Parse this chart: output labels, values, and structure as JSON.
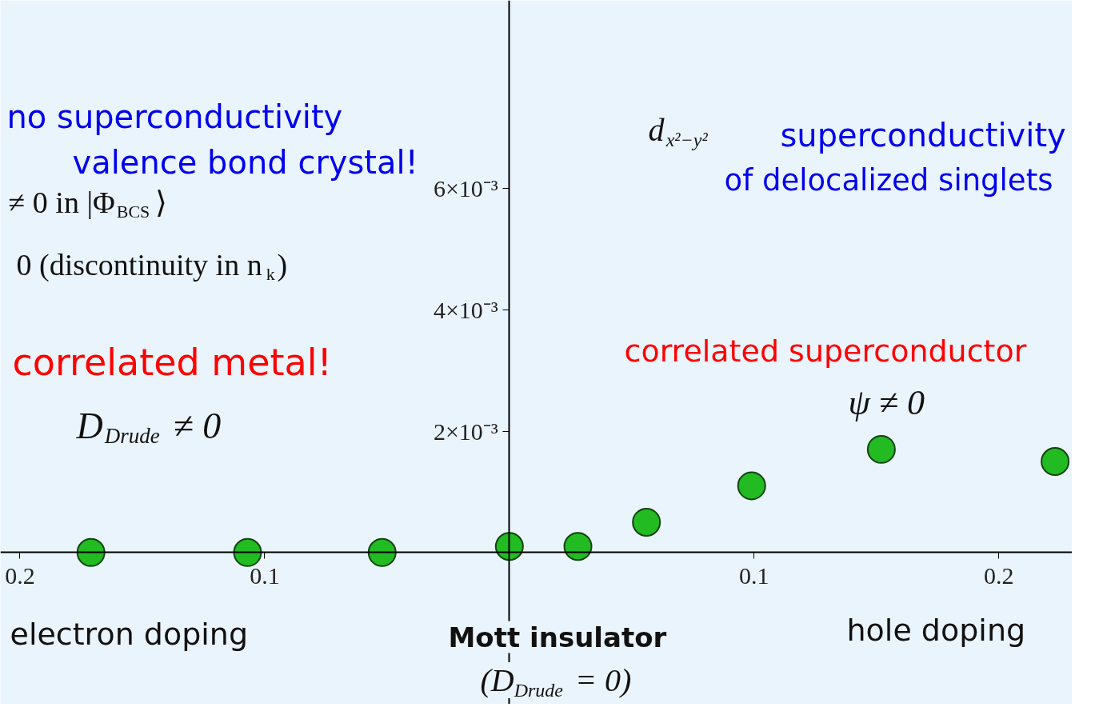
{
  "chart_data": {
    "type": "scatter",
    "marker": "circle",
    "grid": false,
    "x": [
      -0.171,
      -0.107,
      -0.052,
      0.0,
      0.028,
      0.056,
      0.099,
      0.152,
      0.223
    ],
    "series": [
      {
        "color": "#22bb22",
        "values": [
          0.0,
          0.0,
          0.0,
          0.0001,
          0.0001,
          0.0005,
          0.0011,
          0.0017,
          0.0015
        ]
      }
    ],
    "xlim": [
      -0.208,
      0.23
    ],
    "ylim": [
      -0.0025,
      0.0091
    ],
    "xticks": [
      {
        "value": -0.2,
        "label": "0.2"
      },
      {
        "value": -0.1,
        "label": "0.1"
      },
      0.1,
      0.2
    ],
    "yticks": [
      {
        "value": 0.002,
        "label": "2×10⁻³"
      },
      {
        "value": 0.004,
        "label": "4×10⁻³"
      },
      {
        "value": 0.006,
        "label": "6×10⁻³"
      }
    ],
    "annotations": [
      "no superconductivity",
      "valence bond crystal!",
      "≠ 0 in |Φ$_{BCS}$⟩",
      "0 (discontinuity in n$_{k}$)",
      "correlated metal!",
      "D$_{Drude}$ ≠ 0",
      "d$_{x²−y²}$",
      "superconductivity",
      "of delocalized singlets",
      "correlated superconductor",
      "ψ ≠ 0",
      "electron doping",
      "hole doping",
      "Mott insulator",
      "(D$_{Drude}$ = 0)"
    ]
  }
}
